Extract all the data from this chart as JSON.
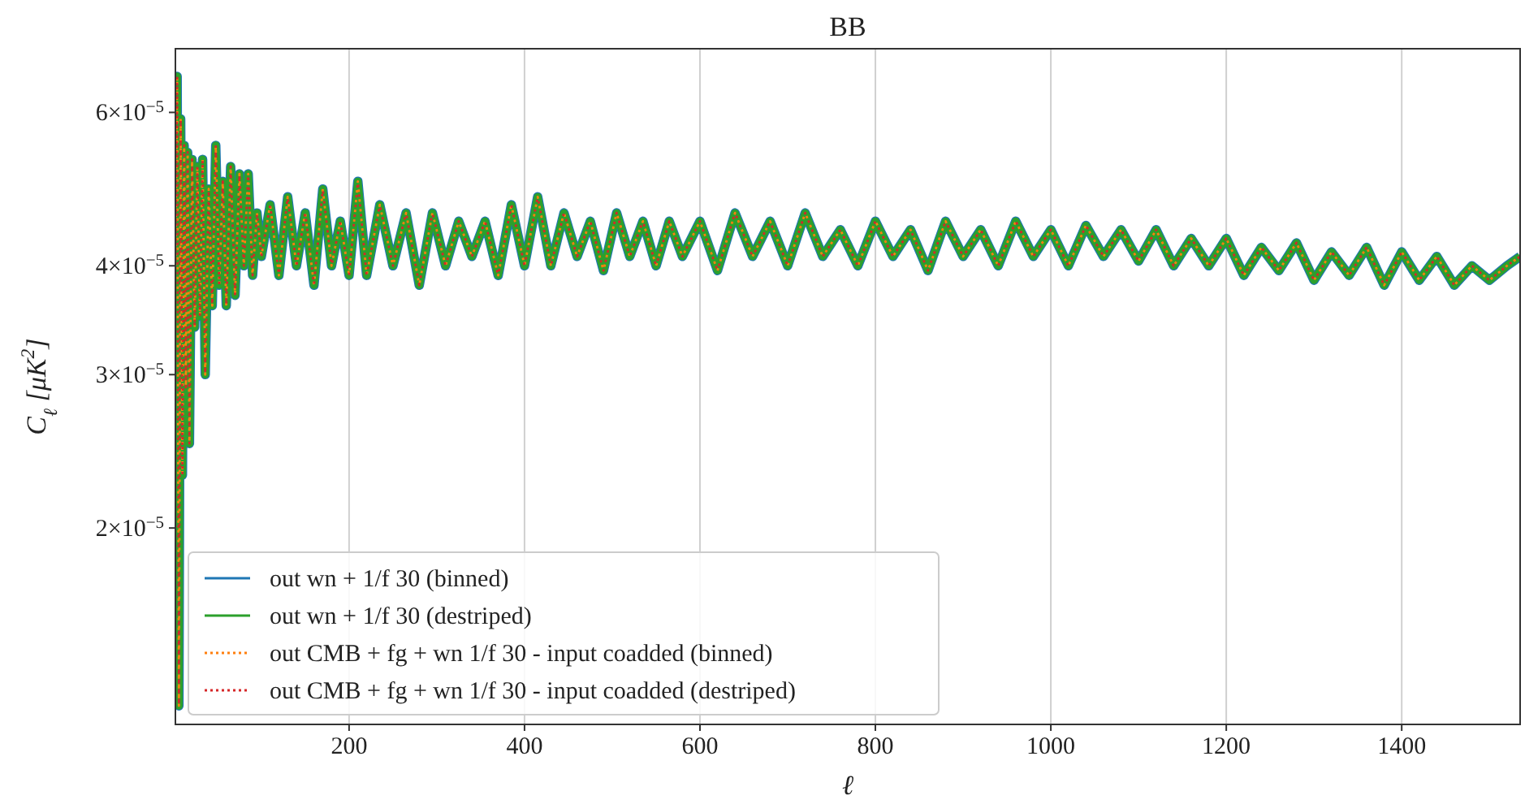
{
  "chart_data": {
    "type": "line",
    "title": "BB",
    "xlabel": "ℓ",
    "ylabel": "C$_{ℓ}$ [μK$^{2}$]",
    "x": [
      2,
      4,
      6,
      8,
      10,
      12,
      14,
      16,
      18,
      21,
      24,
      27,
      30,
      33,
      36,
      40,
      44,
      48,
      52,
      56,
      60,
      65,
      70,
      75,
      80,
      85,
      90,
      95,
      100,
      110,
      120,
      130,
      140,
      150,
      160,
      170,
      180,
      190,
      200,
      210,
      220,
      235,
      250,
      265,
      280,
      295,
      310,
      325,
      340,
      355,
      370,
      385,
      400,
      415,
      430,
      445,
      460,
      475,
      490,
      505,
      520,
      535,
      550,
      565,
      580,
      600,
      620,
      640,
      660,
      680,
      700,
      720,
      740,
      760,
      780,
      800,
      820,
      840,
      860,
      880,
      900,
      920,
      940,
      960,
      980,
      1000,
      1020,
      1040,
      1060,
      1080,
      1100,
      1120,
      1140,
      1160,
      1180,
      1200,
      1220,
      1240,
      1260,
      1280,
      1300,
      1320,
      1340,
      1360,
      1380,
      1400,
      1420,
      1440,
      1460,
      1480,
      1500,
      1520,
      1535
    ],
    "series": [
      {
        "name": "out wn + 1/f 30 (binned)",
        "color": "#1f77b4",
        "line_style": "solid",
        "values": [
          4e-05,
          6.6e-05,
          1.25e-05,
          5.9e-05,
          2.3e-05,
          5.5e-05,
          2.9e-05,
          5.4e-05,
          2.5e-05,
          5.3e-05,
          3.4e-05,
          5.2e-05,
          3.5e-05,
          5.3e-05,
          3e-05,
          4.9e-05,
          3.6e-05,
          5.5e-05,
          3.8e-05,
          5e-05,
          3.6e-05,
          5.2e-05,
          3.7e-05,
          5.1e-05,
          4e-05,
          5.1e-05,
          3.9e-05,
          4.6e-05,
          4.1e-05,
          4.7e-05,
          3.9e-05,
          4.8e-05,
          4e-05,
          4.6e-05,
          3.8e-05,
          4.9e-05,
          4e-05,
          4.5e-05,
          3.9e-05,
          5e-05,
          3.9e-05,
          4.7e-05,
          4e-05,
          4.6e-05,
          3.8e-05,
          4.6e-05,
          4e-05,
          4.5e-05,
          4.1e-05,
          4.5e-05,
          3.9e-05,
          4.7e-05,
          4e-05,
          4.8e-05,
          4e-05,
          4.6e-05,
          4.1e-05,
          4.5e-05,
          3.95e-05,
          4.6e-05,
          4.1e-05,
          4.5e-05,
          4e-05,
          4.5e-05,
          4.1e-05,
          4.5e-05,
          3.95e-05,
          4.6e-05,
          4.1e-05,
          4.5e-05,
          4e-05,
          4.6e-05,
          4.1e-05,
          4.4e-05,
          4e-05,
          4.5e-05,
          4.1e-05,
          4.4e-05,
          3.95e-05,
          4.5e-05,
          4.1e-05,
          4.4e-05,
          4e-05,
          4.5e-05,
          4.1e-05,
          4.4e-05,
          4e-05,
          4.45e-05,
          4.1e-05,
          4.4e-05,
          4.05e-05,
          4.4e-05,
          4e-05,
          4.3e-05,
          4e-05,
          4.3e-05,
          3.9e-05,
          4.2e-05,
          3.95e-05,
          4.25e-05,
          3.85e-05,
          4.15e-05,
          3.9e-05,
          4.2e-05,
          3.8e-05,
          4.15e-05,
          3.85e-05,
          4.1e-05,
          3.8e-05,
          4e-05,
          3.85e-05,
          4e-05,
          4.1e-05
        ]
      },
      {
        "name": "out wn + 1/f 30 (destriped)",
        "color": "#2ca02c",
        "line_style": "solid",
        "values": [
          4e-05,
          6.6e-05,
          1.25e-05,
          5.9e-05,
          2.3e-05,
          5.5e-05,
          2.9e-05,
          5.4e-05,
          2.5e-05,
          5.3e-05,
          3.4e-05,
          5.2e-05,
          3.5e-05,
          5.3e-05,
          3e-05,
          4.9e-05,
          3.6e-05,
          5.5e-05,
          3.8e-05,
          5e-05,
          3.6e-05,
          5.2e-05,
          3.7e-05,
          5.1e-05,
          4e-05,
          5.1e-05,
          3.9e-05,
          4.6e-05,
          4.1e-05,
          4.7e-05,
          3.9e-05,
          4.8e-05,
          4e-05,
          4.6e-05,
          3.8e-05,
          4.9e-05,
          4e-05,
          4.5e-05,
          3.9e-05,
          5e-05,
          3.9e-05,
          4.7e-05,
          4e-05,
          4.6e-05,
          3.8e-05,
          4.6e-05,
          4e-05,
          4.5e-05,
          4.1e-05,
          4.5e-05,
          3.9e-05,
          4.7e-05,
          4e-05,
          4.8e-05,
          4e-05,
          4.6e-05,
          4.1e-05,
          4.5e-05,
          3.95e-05,
          4.6e-05,
          4.1e-05,
          4.5e-05,
          4e-05,
          4.5e-05,
          4.1e-05,
          4.5e-05,
          3.95e-05,
          4.6e-05,
          4.1e-05,
          4.5e-05,
          4e-05,
          4.6e-05,
          4.1e-05,
          4.4e-05,
          4e-05,
          4.5e-05,
          4.1e-05,
          4.4e-05,
          3.95e-05,
          4.5e-05,
          4.1e-05,
          4.4e-05,
          4e-05,
          4.5e-05,
          4.1e-05,
          4.4e-05,
          4e-05,
          4.45e-05,
          4.1e-05,
          4.4e-05,
          4.05e-05,
          4.4e-05,
          4e-05,
          4.3e-05,
          4e-05,
          4.3e-05,
          3.9e-05,
          4.2e-05,
          3.95e-05,
          4.25e-05,
          3.85e-05,
          4.15e-05,
          3.9e-05,
          4.2e-05,
          3.8e-05,
          4.15e-05,
          3.85e-05,
          4.1e-05,
          3.8e-05,
          4e-05,
          3.85e-05,
          4e-05,
          4.1e-05
        ]
      },
      {
        "name": "out CMB + fg + wn  1/f 30 - input coadded (binned)",
        "color": "#ff7f0e",
        "line_style": "dotted",
        "values": [
          4e-05,
          6.6e-05,
          1.25e-05,
          5.9e-05,
          2.3e-05,
          5.5e-05,
          2.9e-05,
          5.4e-05,
          2.5e-05,
          5.3e-05,
          3.4e-05,
          5.2e-05,
          3.5e-05,
          5.3e-05,
          3e-05,
          4.9e-05,
          3.6e-05,
          5.5e-05,
          3.8e-05,
          5e-05,
          3.6e-05,
          5.2e-05,
          3.7e-05,
          5.1e-05,
          4e-05,
          5.1e-05,
          3.9e-05,
          4.6e-05,
          4.1e-05,
          4.7e-05,
          3.9e-05,
          4.8e-05,
          4e-05,
          4.6e-05,
          3.8e-05,
          4.9e-05,
          4e-05,
          4.5e-05,
          3.9e-05,
          5e-05,
          3.9e-05,
          4.7e-05,
          4e-05,
          4.6e-05,
          3.8e-05,
          4.6e-05,
          4e-05,
          4.5e-05,
          4.1e-05,
          4.5e-05,
          3.9e-05,
          4.7e-05,
          4e-05,
          4.8e-05,
          4e-05,
          4.6e-05,
          4.1e-05,
          4.5e-05,
          3.95e-05,
          4.6e-05,
          4.1e-05,
          4.5e-05,
          4e-05,
          4.5e-05,
          4.1e-05,
          4.5e-05,
          3.95e-05,
          4.6e-05,
          4.1e-05,
          4.5e-05,
          4e-05,
          4.6e-05,
          4.1e-05,
          4.4e-05,
          4e-05,
          4.5e-05,
          4.1e-05,
          4.4e-05,
          3.95e-05,
          4.5e-05,
          4.1e-05,
          4.4e-05,
          4e-05,
          4.5e-05,
          4.1e-05,
          4.4e-05,
          4e-05,
          4.45e-05,
          4.1e-05,
          4.4e-05,
          4.05e-05,
          4.4e-05,
          4e-05,
          4.3e-05,
          4e-05,
          4.3e-05,
          3.9e-05,
          4.2e-05,
          3.95e-05,
          4.25e-05,
          3.85e-05,
          4.15e-05,
          3.9e-05,
          4.2e-05,
          3.8e-05,
          4.15e-05,
          3.85e-05,
          4.1e-05,
          3.8e-05,
          4e-05,
          3.85e-05,
          4e-05,
          4.1e-05
        ]
      },
      {
        "name": "out CMB + fg + wn  1/f 30 - input coadded (destriped)",
        "color": "#d62728",
        "line_style": "dotted",
        "values": [
          4e-05,
          6.6e-05,
          1.25e-05,
          5.9e-05,
          2.3e-05,
          5.5e-05,
          2.9e-05,
          5.4e-05,
          2.5e-05,
          5.3e-05,
          3.4e-05,
          5.2e-05,
          3.5e-05,
          5.3e-05,
          3e-05,
          4.9e-05,
          3.6e-05,
          5.5e-05,
          3.8e-05,
          5e-05,
          3.6e-05,
          5.2e-05,
          3.7e-05,
          5.1e-05,
          4e-05,
          5.1e-05,
          3.9e-05,
          4.6e-05,
          4.1e-05,
          4.7e-05,
          3.9e-05,
          4.8e-05,
          4e-05,
          4.6e-05,
          3.8e-05,
          4.9e-05,
          4e-05,
          4.5e-05,
          3.9e-05,
          5e-05,
          3.9e-05,
          4.7e-05,
          4e-05,
          4.6e-05,
          3.8e-05,
          4.6e-05,
          4e-05,
          4.5e-05,
          4.1e-05,
          4.5e-05,
          3.9e-05,
          4.7e-05,
          4e-05,
          4.8e-05,
          4e-05,
          4.6e-05,
          4.1e-05,
          4.5e-05,
          3.95e-05,
          4.6e-05,
          4.1e-05,
          4.5e-05,
          4e-05,
          4.5e-05,
          4.1e-05,
          4.5e-05,
          3.95e-05,
          4.6e-05,
          4.1e-05,
          4.5e-05,
          4e-05,
          4.6e-05,
          4.1e-05,
          4.4e-05,
          4e-05,
          4.5e-05,
          4.1e-05,
          4.4e-05,
          3.95e-05,
          4.5e-05,
          4.1e-05,
          4.4e-05,
          4e-05,
          4.5e-05,
          4.1e-05,
          4.4e-05,
          4e-05,
          4.45e-05,
          4.1e-05,
          4.4e-05,
          4.05e-05,
          4.4e-05,
          4e-05,
          4.3e-05,
          4e-05,
          4.3e-05,
          3.9e-05,
          4.2e-05,
          3.95e-05,
          4.25e-05,
          3.85e-05,
          4.15e-05,
          3.9e-05,
          4.2e-05,
          3.8e-05,
          4.15e-05,
          3.85e-05,
          4.1e-05,
          3.8e-05,
          4e-05,
          3.85e-05,
          4e-05,
          4.1e-05
        ]
      }
    ],
    "xlim": [
      2,
      1535
    ],
    "xticks": [
      200,
      400,
      600,
      800,
      1000,
      1200,
      1400
    ],
    "ylim": [
      1.19e-05,
      7.1e-05
    ],
    "log": "y",
    "yticks": [
      {
        "value": 2e-05,
        "label": "2×10$^{−5}$"
      },
      {
        "value": 3e-05,
        "label": "3×10$^{−5}$"
      },
      {
        "value": 4e-05,
        "label": "4×10$^{−5}$"
      },
      {
        "value": 6e-05,
        "label": "6×10$^{−5}$"
      }
    ],
    "grid": "x",
    "legend": "bottom left"
  }
}
